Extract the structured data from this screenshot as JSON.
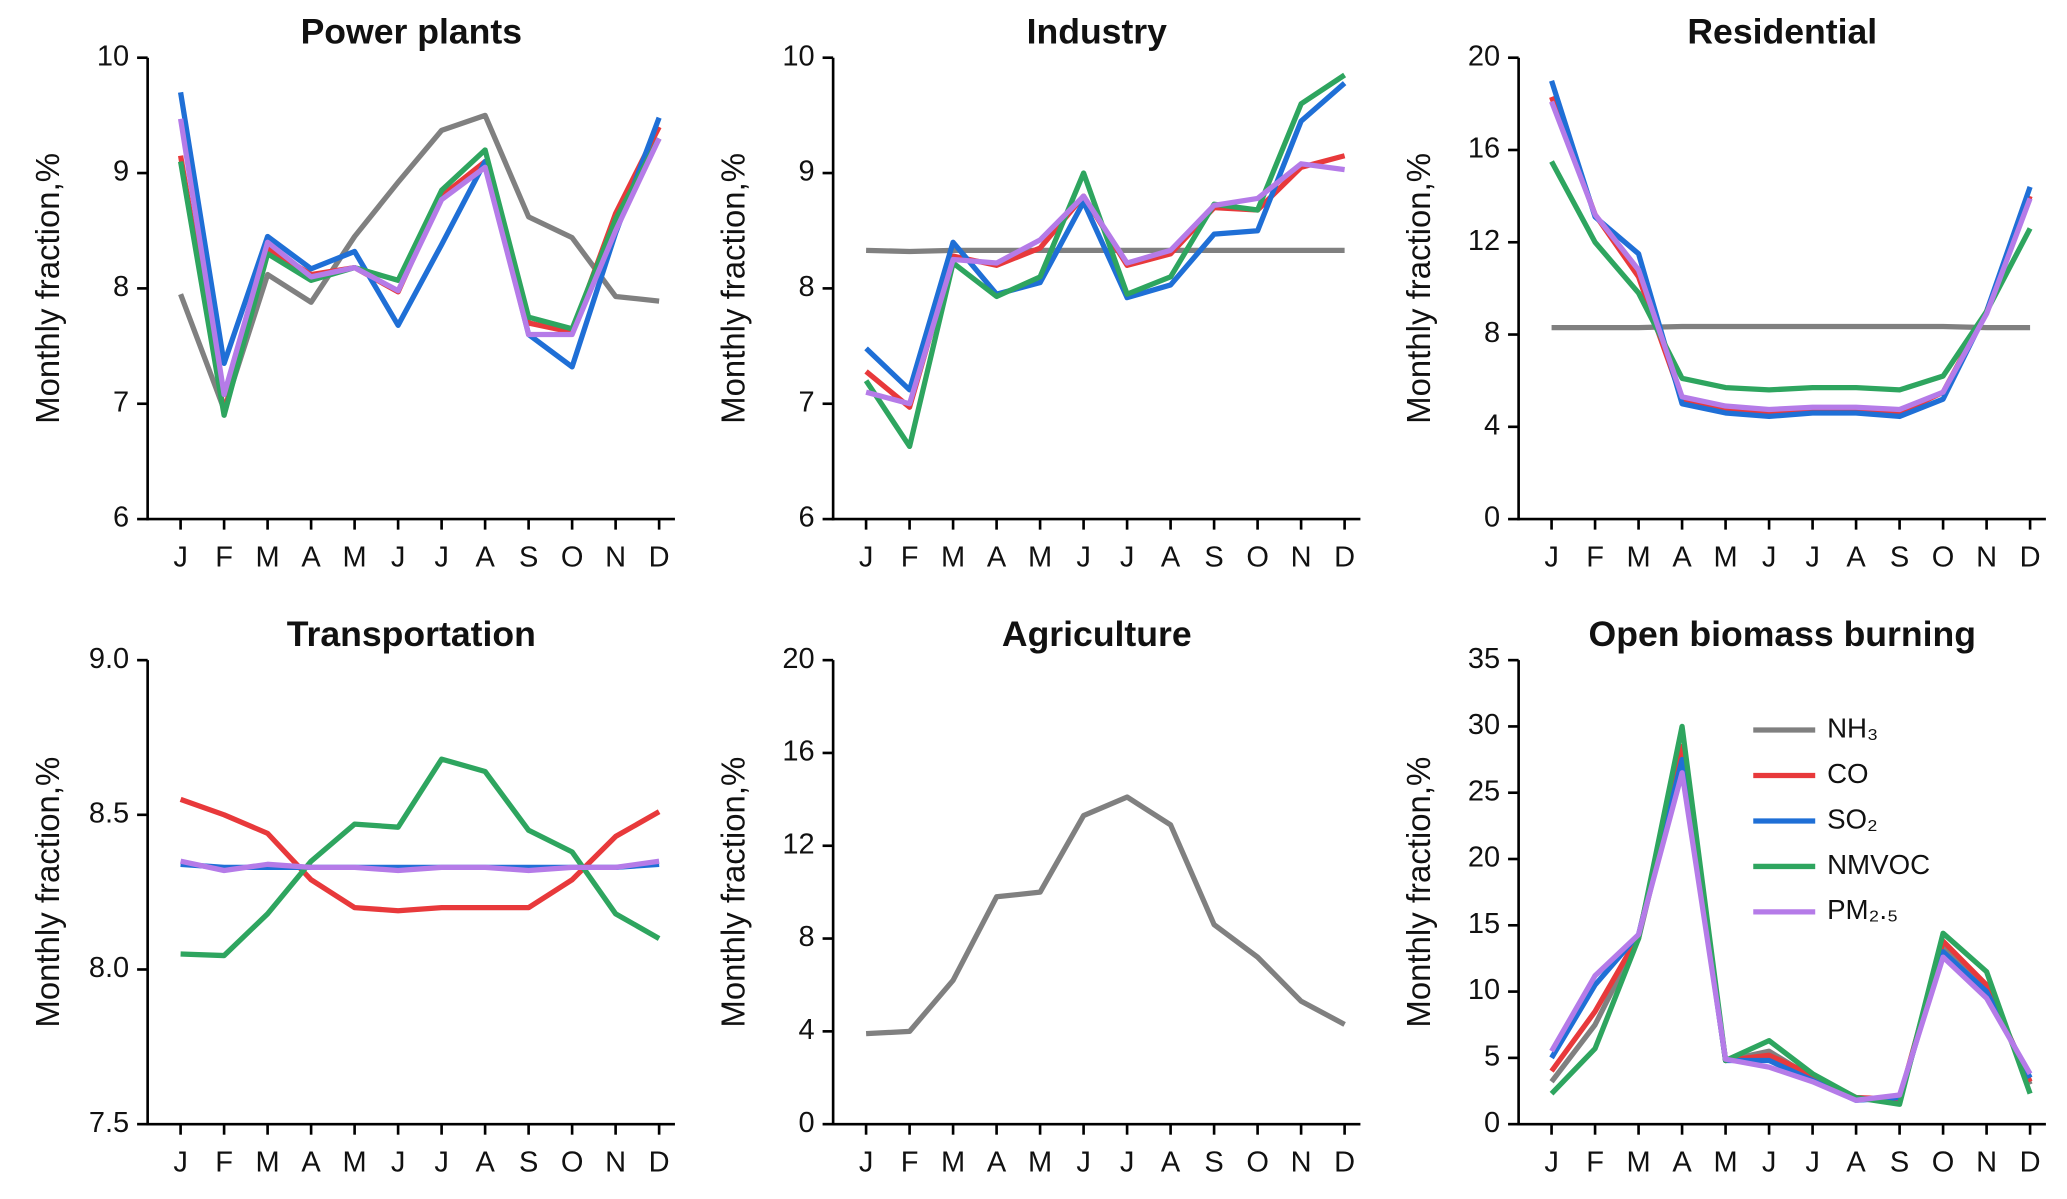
{
  "chart_data": [
    {
      "type": "line",
      "title": "Power plants",
      "ylabel": "Monthly fraction,%",
      "categories": [
        "J",
        "F",
        "M",
        "A",
        "M",
        "J",
        "J",
        "A",
        "S",
        "O",
        "N",
        "D"
      ],
      "ylim": [
        6,
        10
      ],
      "yticks": [
        6,
        7,
        8,
        9,
        10
      ],
      "series": [
        {
          "color": "#808080",
          "values": [
            7.95,
            6.95,
            8.12,
            7.88,
            8.45,
            8.92,
            9.37,
            9.5,
            8.62,
            8.44,
            7.93,
            7.89
          ]
        },
        {
          "color": "#e8393b",
          "values": [
            9.15,
            6.92,
            8.35,
            8.12,
            8.18,
            7.97,
            8.8,
            9.1,
            7.7,
            7.62,
            8.65,
            9.4
          ]
        },
        {
          "color": "#1f6fd6",
          "values": [
            9.7,
            7.35,
            8.45,
            8.17,
            8.32,
            7.68,
            8.38,
            9.1,
            7.6,
            7.32,
            8.48,
            9.48
          ]
        },
        {
          "color": "#2ea55f",
          "values": [
            9.1,
            6.9,
            8.3,
            8.07,
            8.18,
            8.07,
            8.85,
            9.2,
            7.75,
            7.65,
            8.6,
            9.3
          ]
        },
        {
          "color": "#b57be8",
          "values": [
            9.47,
            7.08,
            8.4,
            8.1,
            8.18,
            7.98,
            8.77,
            9.05,
            7.6,
            7.6,
            8.5,
            9.3
          ]
        }
      ]
    },
    {
      "type": "line",
      "title": "Industry",
      "ylabel": "Monthly fraction,%",
      "categories": [
        "J",
        "F",
        "M",
        "A",
        "M",
        "J",
        "J",
        "A",
        "S",
        "O",
        "N",
        "D"
      ],
      "ylim": [
        6,
        10
      ],
      "yticks": [
        6,
        7,
        8,
        9,
        10
      ],
      "series": [
        {
          "color": "#808080",
          "values": [
            8.33,
            8.32,
            8.33,
            8.33,
            8.33,
            8.33,
            8.33,
            8.33,
            8.33,
            8.33,
            8.33,
            8.33
          ]
        },
        {
          "color": "#e8393b",
          "values": [
            7.28,
            6.97,
            8.28,
            8.2,
            8.35,
            8.8,
            8.2,
            8.3,
            8.7,
            8.68,
            9.05,
            9.15
          ]
        },
        {
          "color": "#1f6fd6",
          "values": [
            7.48,
            7.12,
            8.4,
            7.95,
            8.05,
            8.75,
            7.92,
            8.03,
            8.47,
            8.5,
            9.45,
            9.78
          ]
        },
        {
          "color": "#2ea55f",
          "values": [
            7.2,
            6.63,
            8.22,
            7.93,
            8.1,
            9.0,
            7.95,
            8.1,
            8.73,
            8.68,
            9.6,
            9.85
          ]
        },
        {
          "color": "#b57be8",
          "values": [
            7.1,
            7.0,
            8.25,
            8.22,
            8.42,
            8.8,
            8.22,
            8.33,
            8.72,
            8.78,
            9.08,
            9.03
          ]
        }
      ]
    },
    {
      "type": "line",
      "title": "Residential",
      "ylabel": "Monthly fraction,%",
      "categories": [
        "J",
        "F",
        "M",
        "A",
        "M",
        "J",
        "J",
        "A",
        "S",
        "O",
        "N",
        "D"
      ],
      "ylim": [
        0,
        20
      ],
      "yticks": [
        0,
        4,
        8,
        12,
        16,
        20
      ],
      "series": [
        {
          "color": "#808080",
          "values": [
            8.3,
            8.3,
            8.3,
            8.35,
            8.35,
            8.35,
            8.35,
            8.35,
            8.35,
            8.35,
            8.3,
            8.3
          ]
        },
        {
          "color": "#e8393b",
          "values": [
            18.3,
            13.2,
            10.5,
            5.2,
            4.8,
            4.6,
            4.7,
            4.7,
            4.6,
            5.5,
            9.0,
            14.0
          ]
        },
        {
          "color": "#1f6fd6",
          "values": [
            19.0,
            13.1,
            11.5,
            5.0,
            4.6,
            4.45,
            4.6,
            4.6,
            4.45,
            5.2,
            9.0,
            14.4
          ]
        },
        {
          "color": "#2ea55f",
          "values": [
            15.5,
            12.0,
            9.8,
            6.1,
            5.7,
            5.6,
            5.7,
            5.7,
            5.6,
            6.2,
            9.0,
            12.6
          ]
        },
        {
          "color": "#b57be8",
          "values": [
            18.1,
            13.2,
            10.8,
            5.3,
            4.9,
            4.75,
            4.85,
            4.85,
            4.75,
            5.5,
            8.9,
            13.9
          ]
        }
      ]
    },
    {
      "type": "line",
      "title": "Transportation",
      "ylabel": "Monthly fraction,%",
      "categories": [
        "J",
        "F",
        "M",
        "A",
        "M",
        "J",
        "J",
        "A",
        "S",
        "O",
        "N",
        "D"
      ],
      "ylim": [
        7.5,
        9
      ],
      "yticks": [
        7.5,
        {
          "value": 8,
          "label": "8.0"
        },
        8.5,
        {
          "value": 9,
          "label": "9.0"
        }
      ],
      "series": [
        {
          "color": "#e8393b",
          "values": [
            8.55,
            8.5,
            8.44,
            8.29,
            8.2,
            8.19,
            8.2,
            8.2,
            8.2,
            8.29,
            8.43,
            8.51
          ]
        },
        {
          "color": "#1f6fd6",
          "values": [
            8.34,
            8.33,
            8.33,
            8.33,
            8.33,
            8.33,
            8.33,
            8.33,
            8.33,
            8.33,
            8.33,
            8.34
          ]
        },
        {
          "color": "#2ea55f",
          "values": [
            8.05,
            8.045,
            8.18,
            8.35,
            8.47,
            8.46,
            8.68,
            8.64,
            8.45,
            8.38,
            8.18,
            8.1
          ]
        },
        {
          "color": "#b57be8",
          "values": [
            8.35,
            8.32,
            8.34,
            8.33,
            8.33,
            8.32,
            8.33,
            8.33,
            8.32,
            8.33,
            8.33,
            8.35
          ]
        }
      ]
    },
    {
      "type": "line",
      "title": "Agriculture",
      "ylabel": "Monthly fraction,%",
      "categories": [
        "J",
        "F",
        "M",
        "A",
        "M",
        "J",
        "J",
        "A",
        "S",
        "O",
        "N",
        "D"
      ],
      "ylim": [
        0,
        20
      ],
      "yticks": [
        0,
        4,
        8,
        12,
        16,
        20
      ],
      "series": [
        {
          "color": "#808080",
          "values": [
            3.9,
            4.0,
            6.2,
            9.8,
            10.0,
            13.3,
            14.1,
            12.9,
            8.6,
            7.2,
            5.3,
            4.3
          ]
        }
      ]
    },
    {
      "type": "line",
      "title": "Open biomass burning",
      "ylabel": "Monthly fraction,%",
      "categories": [
        "J",
        "F",
        "M",
        "A",
        "M",
        "J",
        "J",
        "A",
        "S",
        "O",
        "N",
        "D"
      ],
      "ylim": [
        0,
        35
      ],
      "yticks": [
        0,
        5,
        10,
        15,
        20,
        25,
        30,
        35
      ],
      "legend": "upper right",
      "series": [
        {
          "name": "NH₃",
          "color": "#808080",
          "values": [
            3.2,
            7.5,
            14,
            27.5,
            4.8,
            5.5,
            3.5,
            2.0,
            1.8,
            13.5,
            10.5,
            3.0
          ]
        },
        {
          "name": "CO",
          "color": "#e8393b",
          "values": [
            4.0,
            8.5,
            14.2,
            28.5,
            4.8,
            5.2,
            3.7,
            2.0,
            1.9,
            13.8,
            10.5,
            3.2
          ]
        },
        {
          "name": "SO₂",
          "color": "#1f6fd6",
          "values": [
            5.0,
            10.5,
            14.3,
            27.5,
            4.8,
            4.8,
            3.3,
            1.8,
            2.0,
            13.0,
            10.0,
            3.5
          ]
        },
        {
          "name": "NMVOC",
          "color": "#2ea55f",
          "values": [
            2.3,
            5.7,
            14.0,
            30.0,
            4.8,
            6.3,
            3.8,
            2.0,
            1.5,
            14.4,
            11.5,
            2.3
          ]
        },
        {
          "name": "PM₂.₅",
          "color": "#b57be8",
          "values": [
            5.5,
            11.2,
            14.3,
            26.5,
            4.9,
            4.3,
            3.2,
            1.8,
            2.2,
            12.6,
            9.5,
            3.8
          ]
        }
      ]
    }
  ]
}
